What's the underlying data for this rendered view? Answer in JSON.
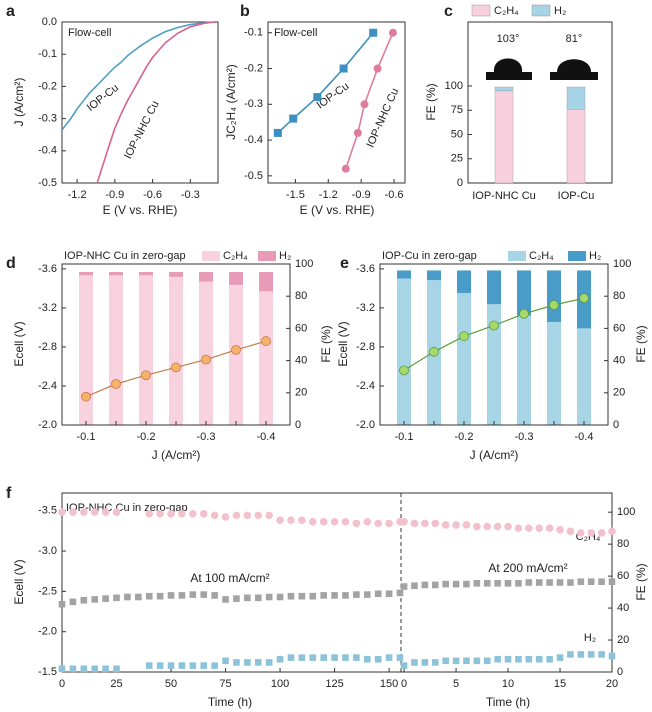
{
  "chart_data": [
    {
      "panel": "a",
      "type": "line",
      "annotation": "Flow-cell",
      "xlabel": "E (V vs. RHE)",
      "ylabel": "J (A/cm²)",
      "xlim": [
        -1.32,
        -0.08
      ],
      "xticks": [
        -1.2,
        -0.9,
        -0.6,
        -0.3
      ],
      "ylim": [
        -0.5,
        0
      ],
      "yticks": [
        {
          "value": 0,
          "label": "0.0"
        },
        -0.1,
        -0.2,
        -0.3,
        -0.4,
        -0.5
      ],
      "series": [
        {
          "name": "IOP-Cu",
          "color": "#4f9fc6",
          "x": [
            -1.32,
            -1.25,
            -1.2,
            -1.15,
            -1.1,
            -1.05,
            -1.0,
            -0.95,
            -0.9,
            -0.85,
            -0.8,
            -0.75,
            -0.7,
            -0.6,
            -0.5,
            -0.4,
            -0.3,
            -0.2,
            -0.15,
            -0.1
          ],
          "values": [
            -0.335,
            -0.3,
            -0.27,
            -0.245,
            -0.22,
            -0.2,
            -0.18,
            -0.16,
            -0.14,
            -0.125,
            -0.105,
            -0.09,
            -0.075,
            -0.05,
            -0.03,
            -0.017,
            -0.008,
            -0.003,
            -0.001,
            0
          ]
        },
        {
          "name": "IOP-NHC Cu",
          "color": "#d9608f",
          "x": [
            -1.04,
            -1.0,
            -0.95,
            -0.9,
            -0.85,
            -0.8,
            -0.75,
            -0.7,
            -0.65,
            -0.6,
            -0.5,
            -0.4,
            -0.3,
            -0.2,
            -0.15,
            -0.1
          ],
          "values": [
            -0.5,
            -0.45,
            -0.39,
            -0.33,
            -0.285,
            -0.245,
            -0.21,
            -0.175,
            -0.14,
            -0.11,
            -0.065,
            -0.035,
            -0.015,
            -0.005,
            -0.002,
            0
          ]
        }
      ]
    },
    {
      "panel": "b",
      "type": "line",
      "annotation": "Flow-cell",
      "xlabel": "E (V vs. RHE)",
      "ylabel": "JC₂H₄ (A/cm²)",
      "xlim": [
        -1.75,
        -0.5
      ],
      "xticks": [
        -1.5,
        -1.2,
        -0.9,
        -0.6
      ],
      "ylim": [
        -0.52,
        -0.07
      ],
      "yticks": [
        -0.1,
        -0.2,
        -0.3,
        -0.4,
        -0.5
      ],
      "series": [
        {
          "name": "IOP-Cu",
          "color": "#3d8fc0",
          "marker": "square",
          "x": [
            -1.66,
            -1.52,
            -1.3,
            -1.06,
            -0.79
          ],
          "values": [
            -0.38,
            -0.34,
            -0.28,
            -0.2,
            -0.1
          ]
        },
        {
          "name": "IOP-NHC Cu",
          "color": "#e07ba0",
          "marker": "circle",
          "x": [
            -1.04,
            -0.93,
            -0.87,
            -0.75,
            -0.61
          ],
          "values": [
            -0.48,
            -0.38,
            -0.3,
            -0.2,
            -0.1
          ]
        }
      ]
    },
    {
      "panel": "c",
      "type": "bar",
      "stacked": true,
      "ylabel": "FE (%)",
      "annotations": [
        "103°",
        "81°"
      ],
      "categories": [
        "IOP-NHC Cu",
        "IOP-Cu"
      ],
      "ylim": [
        0,
        166
      ],
      "yticks": [
        0,
        25,
        50,
        75,
        100
      ],
      "series": [
        {
          "name": "C₂H₄",
          "color": "#f8cfdc",
          "values": [
            95,
            76
          ]
        },
        {
          "name": "H₂",
          "color": "#a6d3e6",
          "values": [
            4,
            23
          ]
        }
      ]
    },
    {
      "panel": "d",
      "type": "combo",
      "title": "IOP-NHC Cu in zero-gap",
      "xlabel": "J (A/cm²)",
      "ylabel": "Ecell (V)",
      "y2label": "FE (%)",
      "categories": [
        "-0.1",
        null,
        "-0.2",
        null,
        "-0.3",
        null,
        "-0.4"
      ],
      "ylim": [
        -2.0,
        -3.65
      ],
      "yticks": [
        -3.6,
        -3.2,
        -2.8,
        -2.4,
        {
          "value": -2,
          "label": "-2.0"
        }
      ],
      "y2lim": [
        0,
        100
      ],
      "y2ticks": [
        0,
        20,
        40,
        60,
        80,
        100
      ],
      "series": [
        {
          "name": "C₂H₄",
          "color": "#f8d2de",
          "axis": "y2",
          "values": [
            93,
            93,
            93,
            92,
            89,
            87,
            83
          ]
        },
        {
          "name": "H₂",
          "color": "#e79bb6",
          "axis": "y2",
          "values": [
            2,
            2,
            2,
            3,
            6,
            8,
            12
          ]
        },
        {
          "kind": "line",
          "color": "#c57b4a",
          "marker_color": "#f6b26b",
          "values": [
            -2.29,
            -2.42,
            -2.51,
            -2.59,
            -2.67,
            -2.77,
            -2.86
          ]
        }
      ]
    },
    {
      "panel": "e",
      "type": "combo",
      "title": "IOP-Cu in zero-gap",
      "xlabel": "J (A/cm²)",
      "ylabel": "Ecell (V)",
      "y2label": "FE (%)",
      "categories": [
        "-0.1",
        null,
        "-0.2",
        null,
        "-0.3",
        null,
        "-0.4"
      ],
      "ylim": [
        -2.0,
        -3.65
      ],
      "yticks": [
        -3.6,
        -3.2,
        -2.8,
        -2.4,
        {
          "value": -2,
          "label": "-2.0"
        }
      ],
      "y2lim": [
        0,
        100
      ],
      "y2ticks": [
        0,
        20,
        40,
        60,
        80,
        100
      ],
      "series": [
        {
          "name": "C₂H₄",
          "color": "#a8d5e6",
          "axis": "y2",
          "values": [
            91,
            90,
            82,
            75,
            68,
            64,
            60
          ]
        },
        {
          "name": "H₂",
          "color": "#4a9cc8",
          "axis": "y2",
          "values": [
            5,
            6,
            14,
            21,
            28,
            32,
            36
          ]
        },
        {
          "kind": "line",
          "color": "#5a9e3c",
          "marker_color": "#a6d96a",
          "values": [
            -2.56,
            -2.75,
            -2.91,
            -3.02,
            -3.14,
            -3.23,
            -3.3
          ]
        }
      ]
    },
    {
      "panel": "f",
      "type": "scatter",
      "title": "IOP-NHC Cu in zero-gap",
      "ylabel": "Ecell (V)",
      "y2label": "FE (%)",
      "annotations": [
        "At 100 mA/cm²",
        "At 200 mA/cm²"
      ],
      "ylim": [
        -1.5,
        -3.72
      ],
      "yticks": [
        -3.5,
        {
          "value": -3,
          "label": "-3.0"
        },
        -2.5,
        {
          "value": -2,
          "label": "-2.0"
        },
        -1.5
      ],
      "y2lim": [
        0,
        112
      ],
      "y2ticks": [
        0,
        20,
        40,
        60,
        80,
        100
      ],
      "series": [
        {
          "color": "#a3a3a3",
          "marker": "square"
        },
        {
          "name": "C₂H₄",
          "color": "#f3c1ce",
          "axis": "y2",
          "marker": "circle"
        },
        {
          "name": "H₂",
          "color": "#8cc3da",
          "axis": "y2",
          "marker": "square"
        }
      ],
      "segments": [
        {
          "xlabel": "Time (h)",
          "xlim": [
            0,
            155
          ],
          "xticks": [
            0,
            25,
            50,
            75,
            100,
            125,
            150
          ],
          "x": [
            0,
            5,
            10,
            15,
            20,
            25,
            30,
            35,
            40,
            45,
            50,
            55,
            60,
            65,
            70,
            75,
            80,
            85,
            90,
            95,
            100,
            105,
            110,
            115,
            120,
            125,
            130,
            135,
            140,
            145,
            150,
            155
          ],
          "series": [
            {
              "values": [
                -2.34,
                -2.37,
                -2.39,
                -2.4,
                -2.41,
                -2.42,
                -2.43,
                -2.43,
                -2.44,
                -2.44,
                -2.45,
                -2.45,
                -2.46,
                -2.46,
                -2.45,
                -2.4,
                -2.41,
                -2.42,
                -2.42,
                -2.43,
                -2.43,
                -2.44,
                -2.44,
                -2.44,
                -2.45,
                -2.45,
                -2.45,
                -2.46,
                -2.46,
                -2.47,
                -2.47,
                -2.48
              ]
            },
            {
              "values": [
                100,
                100,
                100,
                100,
                100,
                100,
                null,
                null,
                99,
                99,
                99,
                99,
                99,
                99,
                98,
                97,
                98,
                98,
                98,
                98,
                95,
                95,
                95,
                94,
                94,
                94,
                94,
                93,
                94,
                93,
                93,
                94
              ]
            },
            {
              "values": [
                2,
                2,
                2,
                2,
                2,
                2,
                null,
                null,
                4,
                4,
                4,
                4,
                4,
                4,
                4,
                7,
                6,
                6,
                6,
                6,
                8,
                9,
                9,
                9,
                9,
                9,
                9,
                9,
                8,
                8,
                9,
                9
              ]
            }
          ]
        },
        {
          "xlabel": "Time (h)",
          "xlim": [
            -0.2,
            20
          ],
          "xticks": [
            0,
            5,
            10,
            15,
            20
          ],
          "x": [
            0,
            1,
            2,
            3,
            4,
            5,
            6,
            7,
            8,
            9,
            10,
            11,
            12,
            13,
            14,
            15,
            16,
            17,
            18,
            19,
            20
          ],
          "series": [
            {
              "values": [
                -2.56,
                -2.57,
                -2.58,
                -2.58,
                -2.59,
                -2.59,
                -2.59,
                -2.6,
                -2.6,
                -2.6,
                -2.6,
                -2.6,
                -2.61,
                -2.61,
                -2.61,
                -2.61,
                -2.61,
                -2.62,
                -2.62,
                -2.62,
                -2.62
              ]
            },
            {
              "values": [
                94,
                93,
                93,
                93,
                92,
                92,
                92,
                91,
                91,
                91,
                91,
                90,
                90,
                90,
                90,
                89,
                88,
                87,
                87,
                87,
                88
              ]
            },
            {
              "values": [
                4,
                6,
                6,
                6,
                7,
                7,
                7,
                7,
                7,
                8,
                8,
                8,
                8,
                8,
                8,
                9,
                11,
                11,
                11,
                11,
                10
              ]
            }
          ]
        }
      ]
    }
  ]
}
